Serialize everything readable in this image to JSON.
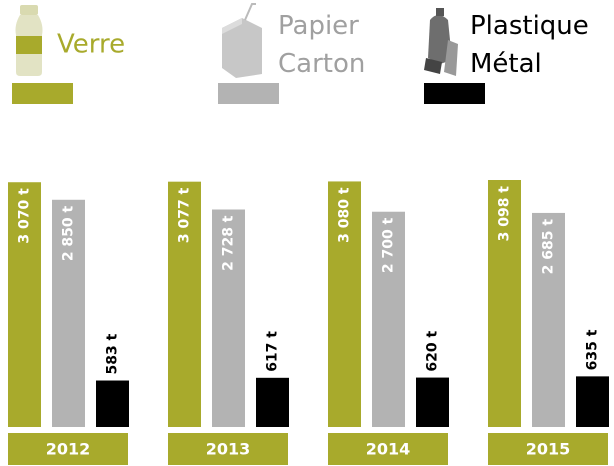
{
  "chart_data": {
    "type": "bar",
    "categories": [
      "2012",
      "2013",
      "2014",
      "2015"
    ],
    "series": [
      {
        "name": "Verre",
        "color": "#a8aa2c",
        "values": [
          3070,
          3077,
          3080,
          3098
        ],
        "value_labels": [
          "3 070 t",
          "3 077 t",
          "3 080 t",
          "3 098 t"
        ]
      },
      {
        "name": "Papier Carton",
        "color": "#b3b3b3",
        "values": [
          2850,
          2728,
          2700,
          2685
        ],
        "value_labels": [
          "2 850 t",
          "2 728 t",
          "2 700 t",
          "2 685 t"
        ]
      },
      {
        "name": "Plastique Métal",
        "color": "#000000",
        "values": [
          583,
          617,
          620,
          635
        ],
        "value_labels": [
          "583 t",
          "617 t",
          "620 t",
          "635 t"
        ]
      }
    ]
  }
}
